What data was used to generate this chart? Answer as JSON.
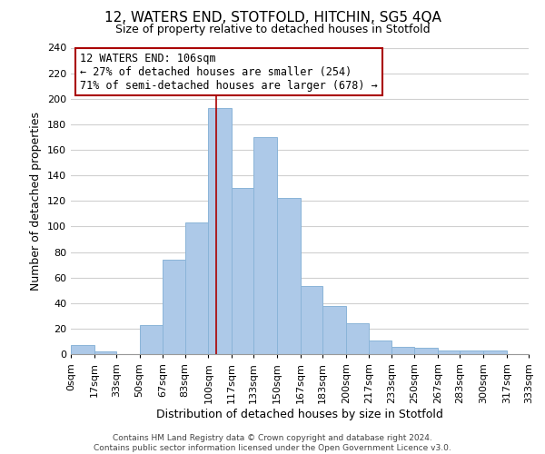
{
  "title": "12, WATERS END, STOTFOLD, HITCHIN, SG5 4QA",
  "subtitle": "Size of property relative to detached houses in Stotfold",
  "xlabel": "Distribution of detached houses by size in Stotfold",
  "ylabel": "Number of detached properties",
  "bar_color": "#adc9e8",
  "bar_edge_color": "#8ab4d8",
  "bin_edges": [
    0,
    17,
    33,
    50,
    67,
    83,
    100,
    117,
    133,
    150,
    167,
    183,
    200,
    217,
    233,
    250,
    267,
    283,
    300,
    317,
    333
  ],
  "bar_heights": [
    7,
    2,
    0,
    23,
    74,
    103,
    193,
    130,
    170,
    122,
    53,
    38,
    24,
    11,
    6,
    5,
    3,
    3,
    3,
    0
  ],
  "tick_labels": [
    "0sqm",
    "17sqm",
    "33sqm",
    "50sqm",
    "67sqm",
    "83sqm",
    "100sqm",
    "117sqm",
    "133sqm",
    "150sqm",
    "167sqm",
    "183sqm",
    "200sqm",
    "217sqm",
    "233sqm",
    "250sqm",
    "267sqm",
    "283sqm",
    "300sqm",
    "317sqm",
    "333sqm"
  ],
  "ylim": [
    0,
    240
  ],
  "yticks": [
    0,
    20,
    40,
    60,
    80,
    100,
    120,
    140,
    160,
    180,
    200,
    220,
    240
  ],
  "vline_x": 106,
  "vline_color": "#aa0000",
  "annotation_line1": "12 WATERS END: 106sqm",
  "annotation_line2": "← 27% of detached houses are smaller (254)",
  "annotation_line3": "71% of semi-detached houses are larger (678) →",
  "footer_text": "Contains HM Land Registry data © Crown copyright and database right 2024.\nContains public sector information licensed under the Open Government Licence v3.0.",
  "background_color": "#ffffff",
  "grid_color": "#d0d0d0",
  "title_fontsize": 11,
  "subtitle_fontsize": 9,
  "axis_label_fontsize": 9,
  "tick_fontsize": 8,
  "annotation_fontsize": 8.5,
  "footer_fontsize": 6.5
}
